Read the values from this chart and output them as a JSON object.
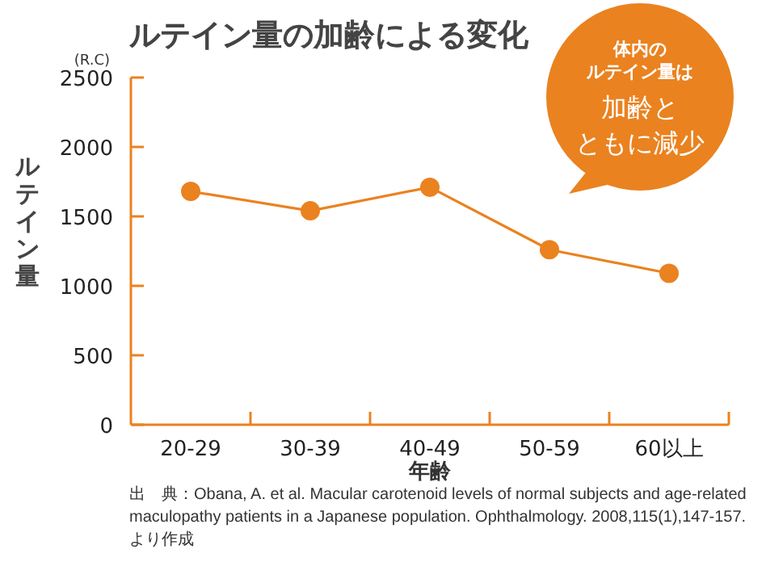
{
  "chart_data": {
    "type": "line",
    "title": "ルテイン量の加齢による変化",
    "xlabel": "年齢",
    "ylabel": "ルテイン量",
    "categories": [
      "20-29",
      "30-39",
      "40-49",
      "50-59",
      "60以上"
    ],
    "series": [
      {
        "color": "#ea8220",
        "values": [
          1680,
          1540,
          1710,
          1260,
          1090
        ]
      }
    ],
    "ylim": [
      0,
      2500
    ],
    "yticks": [
      0,
      500,
      1000,
      1500,
      2000,
      2500
    ],
    "marker": "circle",
    "line_style": "solid",
    "grid": false,
    "annotations": [
      "(R.C)",
      "体内の",
      "ルテイン量は",
      "加齢と",
      "ともに減少",
      "出　典：Obana, A. et al. Macular carotenoid levels of normal subjects and age-related maculopathy patients in a Japanese population. Ophthalmology. 2008,115(1),147-157.　より作成"
    ]
  }
}
